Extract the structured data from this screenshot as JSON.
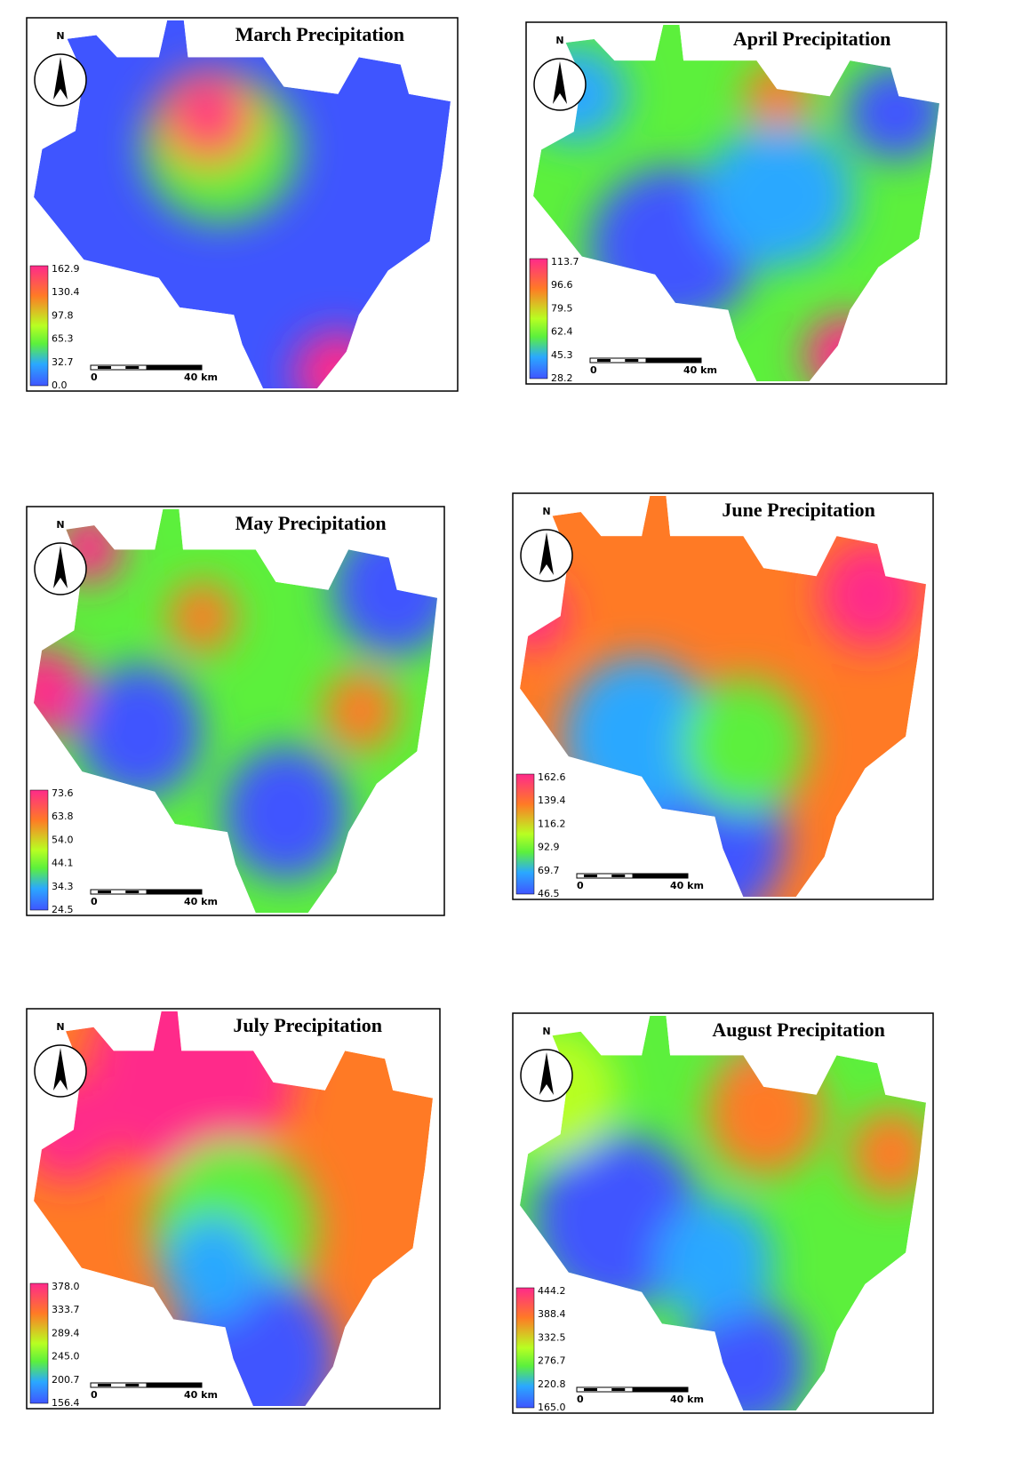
{
  "maps": [
    {
      "title": "March Precipitation",
      "north": "N",
      "legend": [
        "162.9",
        "130.4",
        "97.8",
        "65.3",
        "32.7",
        "0.0"
      ],
      "scale": {
        "start": "0",
        "end": "40 km"
      }
    },
    {
      "title": "April Precipitation",
      "north": "N",
      "legend": [
        "113.7",
        "96.6",
        "79.5",
        "62.4",
        "45.3",
        "28.2"
      ],
      "scale": {
        "start": "0",
        "end": "40 km"
      }
    },
    {
      "title": "May Precipitation",
      "north": "N",
      "legend": [
        "73.6",
        "63.8",
        "54.0",
        "44.1",
        "34.3",
        "24.5"
      ],
      "scale": {
        "start": "0",
        "end": "40 km"
      }
    },
    {
      "title": "June Precipitation",
      "north": "N",
      "legend": [
        "162.6",
        "139.4",
        "116.2",
        "92.9",
        "69.7",
        "46.5"
      ],
      "scale": {
        "start": "0",
        "end": "40 km"
      }
    },
    {
      "title": "July Precipitation",
      "north": "N",
      "legend": [
        "378.0",
        "333.7",
        "289.4",
        "245.0",
        "200.7",
        "156.4"
      ],
      "scale": {
        "start": "0",
        "end": "40 km"
      }
    },
    {
      "title": "August Precipitation",
      "north": "N",
      "legend": [
        "444.2",
        "388.4",
        "332.5",
        "276.7",
        "220.8",
        "165.0"
      ],
      "scale": {
        "start": "0",
        "end": "40 km"
      }
    }
  ]
}
